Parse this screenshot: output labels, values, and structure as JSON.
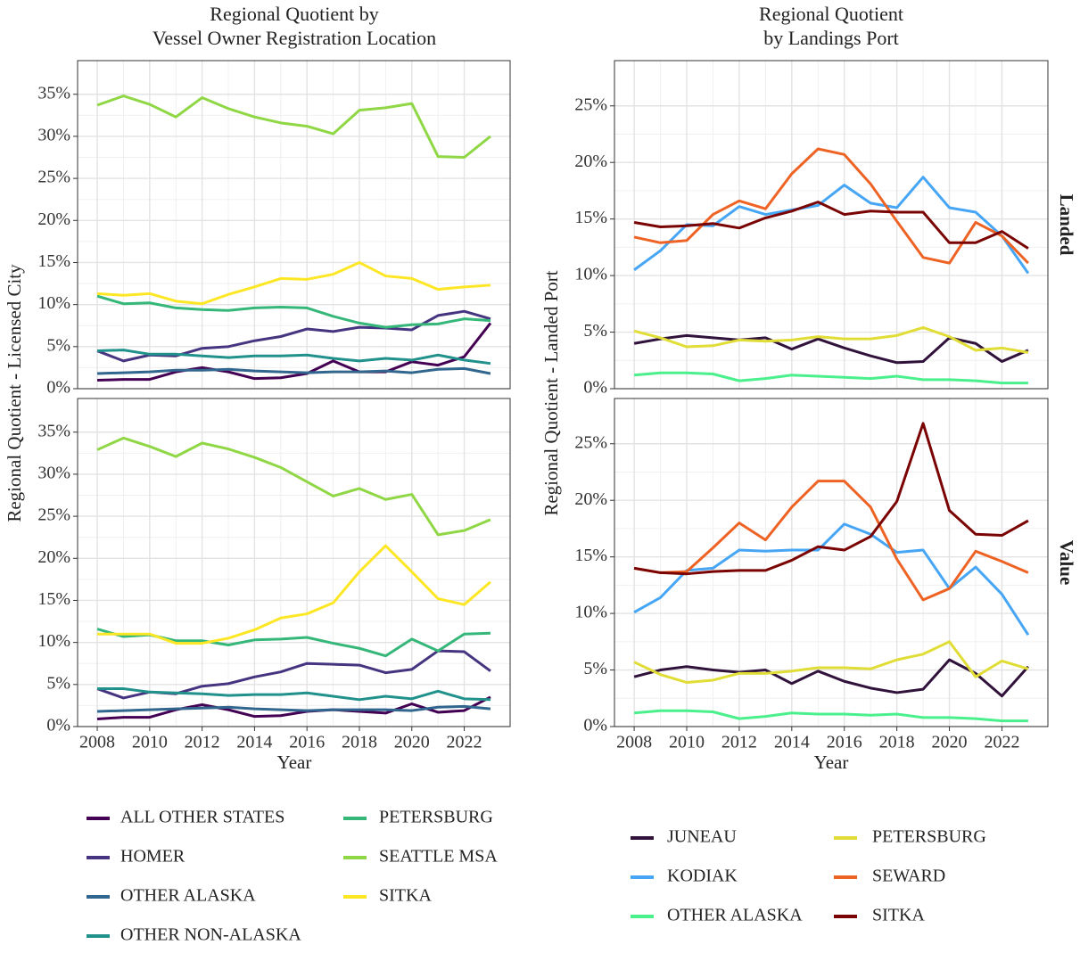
{
  "chart_data": [
    {
      "type": "line",
      "title": [
        "Regional Quotient by",
        "Vessel Owner Registration Location"
      ],
      "ylabel": "Regional Quotient - Licensed City",
      "x": [
        2008,
        2009,
        2010,
        2011,
        2012,
        2013,
        2014,
        2015,
        2016,
        2017,
        2018,
        2019,
        2020,
        2021,
        2022,
        2023
      ],
      "xlim": [
        2007.25,
        2023.75
      ],
      "xticks": [
        2008,
        2010,
        2012,
        2014,
        2016,
        2018,
        2020,
        2022
      ],
      "ylim": [
        0,
        39
      ],
      "yticks": [
        {
          "value": 0,
          "label": "0%"
        },
        {
          "value": 5,
          "label": "5%"
        },
        {
          "value": 10,
          "label": "10%"
        },
        {
          "value": 15,
          "label": "15%"
        },
        {
          "value": 20,
          "label": "20%"
        },
        {
          "value": 25,
          "label": "25%"
        },
        {
          "value": 30,
          "label": "30%"
        },
        {
          "value": 35,
          "label": "35%"
        }
      ],
      "grid": true,
      "series": [
        {
          "name": "ALL OTHER STATES",
          "color": "#440154",
          "values": [
            1.0,
            1.1,
            1.1,
            2.0,
            2.5,
            2.0,
            1.2,
            1.3,
            1.8,
            3.3,
            2.0,
            2.0,
            3.2,
            2.8,
            3.8,
            7.8
          ]
        },
        {
          "name": "HOMER",
          "color": "#463480",
          "values": [
            4.5,
            3.3,
            4.0,
            3.9,
            4.8,
            5.0,
            5.7,
            6.2,
            7.1,
            6.8,
            7.3,
            7.2,
            7.0,
            8.7,
            9.2,
            8.3
          ]
        },
        {
          "name": "OTHER ALASKA",
          "color": "#31668e",
          "values": [
            1.8,
            1.9,
            2.0,
            2.2,
            2.2,
            2.3,
            2.1,
            2.0,
            1.9,
            2.0,
            2.0,
            2.1,
            1.9,
            2.3,
            2.4,
            1.8
          ]
        },
        {
          "name": "OTHER NON-ALASKA",
          "color": "#21918c",
          "values": [
            4.5,
            4.6,
            4.1,
            4.1,
            3.9,
            3.7,
            3.9,
            3.9,
            4.0,
            3.6,
            3.3,
            3.6,
            3.4,
            4.0,
            3.4,
            3.0
          ]
        },
        {
          "name": "PETERSBURG",
          "color": "#35b779",
          "values": [
            11.0,
            10.1,
            10.2,
            9.6,
            9.4,
            9.3,
            9.6,
            9.7,
            9.6,
            8.6,
            7.8,
            7.3,
            7.6,
            7.7,
            8.3,
            8.1
          ]
        },
        {
          "name": "SEATTLE MSA",
          "color": "#8fd744",
          "values": [
            33.7,
            34.8,
            33.8,
            32.3,
            34.6,
            33.3,
            32.3,
            31.6,
            31.2,
            30.3,
            33.1,
            33.4,
            33.9,
            27.6,
            27.5,
            30.0
          ]
        },
        {
          "name": "SITKA",
          "color": "#fde725",
          "values": [
            11.3,
            11.1,
            11.3,
            10.4,
            10.1,
            11.2,
            12.1,
            13.1,
            13.0,
            13.6,
            15.0,
            13.4,
            13.1,
            11.8,
            12.1,
            12.3
          ]
        }
      ]
    },
    {
      "type": "line",
      "xlabel": "Year",
      "x": [
        2008,
        2009,
        2010,
        2011,
        2012,
        2013,
        2014,
        2015,
        2016,
        2017,
        2018,
        2019,
        2020,
        2021,
        2022,
        2023
      ],
      "xlim": [
        2007.25,
        2023.75
      ],
      "xticks": [
        2008,
        2010,
        2012,
        2014,
        2016,
        2018,
        2020,
        2022
      ],
      "ylim": [
        0,
        39
      ],
      "yticks": [
        {
          "value": 0,
          "label": "0%"
        },
        {
          "value": 5,
          "label": "5%"
        },
        {
          "value": 10,
          "label": "10%"
        },
        {
          "value": 15,
          "label": "15%"
        },
        {
          "value": 20,
          "label": "20%"
        },
        {
          "value": 25,
          "label": "25%"
        },
        {
          "value": 30,
          "label": "30%"
        },
        {
          "value": 35,
          "label": "35%"
        }
      ],
      "grid": true,
      "series": [
        {
          "name": "ALL OTHER STATES",
          "color": "#440154",
          "values": [
            0.9,
            1.1,
            1.1,
            2.0,
            2.6,
            2.0,
            1.2,
            1.3,
            1.8,
            2.0,
            1.8,
            1.6,
            2.7,
            1.7,
            1.9,
            3.5
          ]
        },
        {
          "name": "HOMER",
          "color": "#463480",
          "values": [
            4.5,
            3.4,
            4.1,
            3.9,
            4.8,
            5.1,
            5.9,
            6.5,
            7.5,
            7.4,
            7.3,
            6.4,
            6.8,
            9.0,
            8.9,
            6.6
          ]
        },
        {
          "name": "OTHER ALASKA",
          "color": "#31668e",
          "values": [
            1.8,
            1.9,
            2.0,
            2.1,
            2.2,
            2.3,
            2.1,
            2.0,
            1.9,
            2.0,
            2.0,
            2.0,
            1.9,
            2.3,
            2.4,
            2.1
          ]
        },
        {
          "name": "OTHER NON-ALASKA",
          "color": "#21918c",
          "values": [
            4.5,
            4.5,
            4.1,
            4.0,
            3.9,
            3.7,
            3.8,
            3.8,
            4.0,
            3.6,
            3.2,
            3.6,
            3.3,
            4.2,
            3.3,
            3.2
          ]
        },
        {
          "name": "PETERSBURG",
          "color": "#35b779",
          "values": [
            11.6,
            10.7,
            10.9,
            10.2,
            10.2,
            9.7,
            10.3,
            10.4,
            10.6,
            9.9,
            9.3,
            8.4,
            10.4,
            9.0,
            11.0,
            11.1
          ]
        },
        {
          "name": "SEATTLE MSA",
          "color": "#8fd744",
          "values": [
            32.9,
            34.3,
            33.3,
            32.1,
            33.7,
            33.0,
            32.0,
            30.8,
            29.1,
            27.4,
            28.3,
            27.0,
            27.6,
            22.8,
            23.3,
            24.6
          ]
        },
        {
          "name": "SITKA",
          "color": "#fde725",
          "values": [
            11.0,
            11.0,
            11.0,
            9.9,
            9.9,
            10.5,
            11.5,
            12.9,
            13.4,
            14.7,
            18.4,
            21.5,
            18.4,
            15.2,
            14.5,
            17.2
          ]
        }
      ]
    },
    {
      "type": "line",
      "title": [
        "Regional Quotient",
        "by Landings Port"
      ],
      "ylabel": "Regional Quotient - Landed Port",
      "facet": "Landed",
      "x": [
        2008,
        2009,
        2010,
        2011,
        2012,
        2013,
        2014,
        2015,
        2016,
        2017,
        2018,
        2019,
        2020,
        2021,
        2022,
        2023
      ],
      "xlim": [
        2007.25,
        2023.75
      ],
      "xticks": [
        2008,
        2010,
        2012,
        2014,
        2016,
        2018,
        2020,
        2022
      ],
      "ylim": [
        0,
        29
      ],
      "yticks": [
        {
          "value": 0,
          "label": "0%"
        },
        {
          "value": 5,
          "label": "5%"
        },
        {
          "value": 10,
          "label": "10%"
        },
        {
          "value": 15,
          "label": "15%"
        },
        {
          "value": 20,
          "label": "20%"
        },
        {
          "value": 25,
          "label": "25%"
        }
      ],
      "grid": true,
      "series": [
        {
          "name": "JUNEAU",
          "color": "#30123b",
          "values": [
            4.0,
            4.4,
            4.7,
            4.5,
            4.3,
            4.5,
            3.5,
            4.4,
            3.6,
            2.9,
            2.3,
            2.4,
            4.5,
            4.0,
            2.4,
            3.4
          ]
        },
        {
          "name": "KODIAK",
          "color": "#46a6f5",
          "values": [
            10.5,
            12.2,
            14.5,
            14.4,
            16.1,
            15.4,
            15.8,
            16.2,
            18.0,
            16.4,
            16.0,
            18.7,
            16.0,
            15.6,
            13.5,
            10.2
          ]
        },
        {
          "name": "OTHER ALASKA",
          "color": "#4af08c",
          "values": [
            1.2,
            1.4,
            1.4,
            1.3,
            0.7,
            0.9,
            1.2,
            1.1,
            1.0,
            0.9,
            1.1,
            0.8,
            0.8,
            0.7,
            0.5,
            0.5
          ]
        },
        {
          "name": "PETERSBURG",
          "color": "#e1dd37",
          "values": [
            5.1,
            4.5,
            3.7,
            3.8,
            4.3,
            4.2,
            4.3,
            4.6,
            4.4,
            4.4,
            4.7,
            5.4,
            4.6,
            3.4,
            3.6,
            3.2
          ]
        },
        {
          "name": "SEWARD",
          "color": "#ee6324",
          "values": [
            13.4,
            12.9,
            13.1,
            15.4,
            16.6,
            15.9,
            19.0,
            21.2,
            20.7,
            18.1,
            14.8,
            11.6,
            11.1,
            14.7,
            13.5,
            11.1
          ]
        },
        {
          "name": "SITKA",
          "color": "#7a0403",
          "values": [
            14.7,
            14.3,
            14.4,
            14.6,
            14.2,
            15.1,
            15.7,
            16.5,
            15.4,
            15.7,
            15.6,
            15.6,
            12.9,
            12.9,
            13.9,
            12.4
          ]
        }
      ]
    },
    {
      "type": "line",
      "xlabel": "Year",
      "facet": "Value",
      "x": [
        2008,
        2009,
        2010,
        2011,
        2012,
        2013,
        2014,
        2015,
        2016,
        2017,
        2018,
        2019,
        2020,
        2021,
        2022,
        2023
      ],
      "xlim": [
        2007.25,
        2023.75
      ],
      "xticks": [
        2008,
        2010,
        2012,
        2014,
        2016,
        2018,
        2020,
        2022
      ],
      "ylim": [
        0,
        29
      ],
      "yticks": [
        {
          "value": 0,
          "label": "0%"
        },
        {
          "value": 5,
          "label": "5%"
        },
        {
          "value": 10,
          "label": "10%"
        },
        {
          "value": 15,
          "label": "15%"
        },
        {
          "value": 20,
          "label": "20%"
        },
        {
          "value": 25,
          "label": "25%"
        }
      ],
      "grid": true,
      "series": [
        {
          "name": "JUNEAU",
          "color": "#30123b",
          "values": [
            4.4,
            5.0,
            5.3,
            5.0,
            4.8,
            5.0,
            3.8,
            4.9,
            4.0,
            3.4,
            3.0,
            3.3,
            5.9,
            4.7,
            2.7,
            5.3
          ]
        },
        {
          "name": "KODIAK",
          "color": "#46a6f5",
          "values": [
            10.1,
            11.4,
            13.8,
            14.0,
            15.6,
            15.5,
            15.6,
            15.6,
            17.9,
            17.0,
            15.4,
            15.6,
            12.2,
            14.1,
            11.7,
            8.1
          ]
        },
        {
          "name": "OTHER ALASKA",
          "color": "#4af08c",
          "values": [
            1.2,
            1.4,
            1.4,
            1.3,
            0.7,
            0.9,
            1.2,
            1.1,
            1.1,
            1.0,
            1.1,
            0.8,
            0.8,
            0.7,
            0.5,
            0.5
          ]
        },
        {
          "name": "PETERSBURG",
          "color": "#e1dd37",
          "values": [
            5.7,
            4.6,
            3.9,
            4.1,
            4.7,
            4.7,
            4.9,
            5.2,
            5.2,
            5.1,
            5.9,
            6.4,
            7.5,
            4.4,
            5.8,
            5.1
          ]
        },
        {
          "name": "SEWARD",
          "color": "#ee6324",
          "values": [
            14.0,
            13.6,
            13.7,
            15.8,
            18.0,
            16.5,
            19.4,
            21.7,
            21.7,
            19.4,
            14.8,
            11.2,
            12.2,
            15.5,
            14.6,
            13.6
          ]
        },
        {
          "name": "SITKA",
          "color": "#7a0403",
          "values": [
            14.0,
            13.6,
            13.5,
            13.7,
            13.8,
            13.8,
            14.7,
            15.9,
            15.6,
            16.8,
            19.9,
            26.8,
            19.1,
            17.0,
            16.9,
            18.2
          ]
        }
      ]
    }
  ]
}
